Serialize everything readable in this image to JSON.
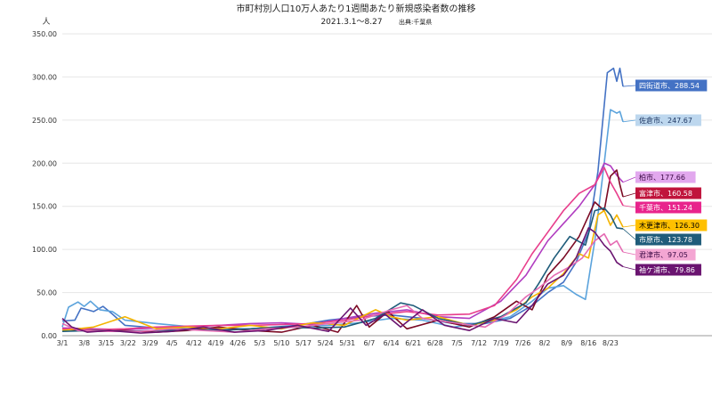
{
  "chart_data": {
    "type": "line",
    "title": "市町村別人口10万人あたり1週間あたり新規感染者数の推移",
    "subtitle": "2021.3.1～8.27",
    "source": "出典:千葉県",
    "ylabel": "人",
    "ylim": [
      0,
      350
    ],
    "yticks": [
      "0.00",
      "50.00",
      "100.00",
      "150.00",
      "200.00",
      "250.00",
      "300.00",
      "350.00"
    ],
    "xticks": [
      {
        "label": "3/1",
        "day": 0
      },
      {
        "label": "3/8",
        "day": 7
      },
      {
        "label": "3/15",
        "day": 14
      },
      {
        "label": "3/22",
        "day": 21
      },
      {
        "label": "3/29",
        "day": 28
      },
      {
        "label": "4/5",
        "day": 35
      },
      {
        "label": "4/12",
        "day": 42
      },
      {
        "label": "4/19",
        "day": 49
      },
      {
        "label": "4/26",
        "day": 56
      },
      {
        "label": "5/3",
        "day": 63
      },
      {
        "label": "5/10",
        "day": 70
      },
      {
        "label": "5/17",
        "day": 77
      },
      {
        "label": "5/24",
        "day": 84
      },
      {
        "label": "5/31",
        "day": 91
      },
      {
        "label": "6/7",
        "day": 98
      },
      {
        "label": "6/14",
        "day": 105
      },
      {
        "label": "6/21",
        "day": 112
      },
      {
        "label": "6/28",
        "day": 119
      },
      {
        "label": "7/5",
        "day": 126
      },
      {
        "label": "7/12",
        "day": 133
      },
      {
        "label": "7/19",
        "day": 140
      },
      {
        "label": "7/26",
        "day": 147
      },
      {
        "label": "8/2",
        "day": 154
      },
      {
        "label": "8/9",
        "day": 161
      },
      {
        "label": "8/16",
        "day": 168
      },
      {
        "label": "8/23",
        "day": 175
      }
    ],
    "xlim": [
      0,
      179
    ],
    "grid": "horizontal",
    "series": [
      {
        "name": "四街道市",
        "label": "四街道市、288.54",
        "color": "#4472c4",
        "label_bg": "#4472c4",
        "label_color": "#ffffff",
        "points": [
          [
            0,
            17
          ],
          [
            4,
            18
          ],
          [
            6,
            32
          ],
          [
            8,
            30
          ],
          [
            10,
            28
          ],
          [
            13,
            34
          ],
          [
            16,
            25
          ],
          [
            20,
            12
          ],
          [
            30,
            9
          ],
          [
            45,
            7
          ],
          [
            60,
            8
          ],
          [
            75,
            12
          ],
          [
            85,
            18
          ],
          [
            95,
            22
          ],
          [
            105,
            24
          ],
          [
            115,
            20
          ],
          [
            125,
            14
          ],
          [
            135,
            14
          ],
          [
            143,
            20
          ],
          [
            150,
            35
          ],
          [
            155,
            50
          ],
          [
            160,
            62
          ],
          [
            164,
            85
          ],
          [
            168,
            120
          ],
          [
            171,
            190
          ],
          [
            174,
            305
          ],
          [
            176,
            310
          ],
          [
            177,
            295
          ],
          [
            178,
            310
          ],
          [
            179,
            289
          ]
        ]
      },
      {
        "name": "佐倉市",
        "label": "佐倉市、247.67",
        "color": "#5ba3dc",
        "label_bg": "#bdd7ee",
        "label_color": "#1f3864",
        "points": [
          [
            0,
            10
          ],
          [
            2,
            33
          ],
          [
            5,
            39
          ],
          [
            7,
            34
          ],
          [
            9,
            40
          ],
          [
            12,
            30
          ],
          [
            16,
            28
          ],
          [
            20,
            18
          ],
          [
            30,
            14
          ],
          [
            45,
            9
          ],
          [
            60,
            8
          ],
          [
            75,
            10
          ],
          [
            85,
            12
          ],
          [
            95,
            15
          ],
          [
            105,
            20
          ],
          [
            115,
            18
          ],
          [
            125,
            10
          ],
          [
            135,
            15
          ],
          [
            143,
            22
          ],
          [
            150,
            40
          ],
          [
            155,
            55
          ],
          [
            160,
            58
          ],
          [
            164,
            48
          ],
          [
            167,
            42
          ],
          [
            170,
            110
          ],
          [
            173,
            200
          ],
          [
            175,
            262
          ],
          [
            177,
            258
          ],
          [
            178,
            260
          ],
          [
            179,
            248
          ]
        ]
      },
      {
        "name": "柏市",
        "label": "柏市、177.66",
        "color": "#b03cc0",
        "label_bg": "#e2a8ee",
        "label_color": "#3b0a45",
        "points": [
          [
            0,
            9
          ],
          [
            10,
            8
          ],
          [
            20,
            7
          ],
          [
            30,
            9
          ],
          [
            40,
            10
          ],
          [
            50,
            12
          ],
          [
            60,
            14
          ],
          [
            70,
            15
          ],
          [
            80,
            13
          ],
          [
            90,
            20
          ],
          [
            100,
            26
          ],
          [
            110,
            30
          ],
          [
            120,
            22
          ],
          [
            130,
            20
          ],
          [
            140,
            40
          ],
          [
            148,
            70
          ],
          [
            155,
            110
          ],
          [
            160,
            130
          ],
          [
            165,
            150
          ],
          [
            170,
            175
          ],
          [
            173,
            200
          ],
          [
            175,
            197
          ],
          [
            177,
            186
          ],
          [
            179,
            178
          ]
        ]
      },
      {
        "name": "富津市",
        "label": "富津市、160.58",
        "color": "#7b0a24",
        "label_bg": "#c0143c",
        "label_color": "#ffffff",
        "points": [
          [
            0,
            8
          ],
          [
            10,
            5
          ],
          [
            20,
            6
          ],
          [
            30,
            4
          ],
          [
            40,
            6
          ],
          [
            50,
            10
          ],
          [
            60,
            6
          ],
          [
            70,
            4
          ],
          [
            80,
            12
          ],
          [
            88,
            4
          ],
          [
            94,
            35
          ],
          [
            98,
            10
          ],
          [
            104,
            28
          ],
          [
            110,
            8
          ],
          [
            120,
            18
          ],
          [
            130,
            10
          ],
          [
            138,
            22
          ],
          [
            145,
            40
          ],
          [
            150,
            30
          ],
          [
            155,
            70
          ],
          [
            160,
            90
          ],
          [
            165,
            115
          ],
          [
            170,
            155
          ],
          [
            173,
            145
          ],
          [
            175,
            185
          ],
          [
            177,
            192
          ],
          [
            178,
            175
          ],
          [
            179,
            161
          ]
        ]
      },
      {
        "name": "千葉市",
        "label": "千葉市、151.24",
        "color": "#e83e8c",
        "label_bg": "#e8248c",
        "label_color": "#ffffff",
        "points": [
          [
            0,
            8
          ],
          [
            10,
            7
          ],
          [
            20,
            8
          ],
          [
            30,
            10
          ],
          [
            40,
            11
          ],
          [
            50,
            12
          ],
          [
            60,
            12
          ],
          [
            70,
            13
          ],
          [
            80,
            14
          ],
          [
            90,
            18
          ],
          [
            100,
            24
          ],
          [
            110,
            28
          ],
          [
            120,
            24
          ],
          [
            130,
            25
          ],
          [
            138,
            35
          ],
          [
            145,
            65
          ],
          [
            150,
            95
          ],
          [
            155,
            120
          ],
          [
            160,
            145
          ],
          [
            165,
            165
          ],
          [
            170,
            175
          ],
          [
            173,
            195
          ],
          [
            175,
            178
          ],
          [
            177,
            165
          ],
          [
            179,
            151
          ]
        ]
      },
      {
        "name": "木更津市",
        "label": "木更津市、126.30",
        "color": "#f4b400",
        "label_bg": "#ffc000",
        "label_color": "#000000",
        "points": [
          [
            0,
            6
          ],
          [
            10,
            10
          ],
          [
            20,
            22
          ],
          [
            25,
            15
          ],
          [
            30,
            8
          ],
          [
            40,
            10
          ],
          [
            50,
            8
          ],
          [
            60,
            12
          ],
          [
            70,
            8
          ],
          [
            80,
            15
          ],
          [
            90,
            12
          ],
          [
            100,
            30
          ],
          [
            105,
            22
          ],
          [
            110,
            18
          ],
          [
            120,
            22
          ],
          [
            130,
            12
          ],
          [
            138,
            18
          ],
          [
            145,
            30
          ],
          [
            150,
            45
          ],
          [
            155,
            55
          ],
          [
            160,
            72
          ],
          [
            165,
            95
          ],
          [
            168,
            90
          ],
          [
            171,
            140
          ],
          [
            173,
            145
          ],
          [
            175,
            128
          ],
          [
            177,
            140
          ],
          [
            179,
            126
          ]
        ]
      },
      {
        "name": "市原市",
        "label": "市原市、123.78",
        "color": "#1f5c7a",
        "label_bg": "#1f5c7a",
        "label_color": "#ffffff",
        "points": [
          [
            0,
            5
          ],
          [
            10,
            6
          ],
          [
            20,
            5
          ],
          [
            30,
            6
          ],
          [
            40,
            7
          ],
          [
            50,
            6
          ],
          [
            60,
            8
          ],
          [
            70,
            10
          ],
          [
            80,
            9
          ],
          [
            90,
            10
          ],
          [
            100,
            20
          ],
          [
            108,
            38
          ],
          [
            112,
            35
          ],
          [
            120,
            20
          ],
          [
            130,
            12
          ],
          [
            140,
            22
          ],
          [
            148,
            38
          ],
          [
            152,
            60
          ],
          [
            157,
            90
          ],
          [
            162,
            115
          ],
          [
            167,
            105
          ],
          [
            170,
            145
          ],
          [
            173,
            148
          ],
          [
            175,
            140
          ],
          [
            177,
            125
          ],
          [
            179,
            124
          ]
        ]
      },
      {
        "name": "君津市",
        "label": "君津市、97.05",
        "color": "#e56bb3",
        "label_bg": "#f4a6d3",
        "label_color": "#3b0a45",
        "points": [
          [
            0,
            14
          ],
          [
            5,
            6
          ],
          [
            15,
            5
          ],
          [
            25,
            5
          ],
          [
            35,
            8
          ],
          [
            45,
            6
          ],
          [
            55,
            4
          ],
          [
            65,
            8
          ],
          [
            75,
            10
          ],
          [
            85,
            14
          ],
          [
            95,
            18
          ],
          [
            105,
            30
          ],
          [
            110,
            35
          ],
          [
            115,
            20
          ],
          [
            125,
            15
          ],
          [
            135,
            10
          ],
          [
            142,
            25
          ],
          [
            148,
            45
          ],
          [
            152,
            55
          ],
          [
            157,
            70
          ],
          [
            162,
            80
          ],
          [
            166,
            90
          ],
          [
            170,
            110
          ],
          [
            173,
            118
          ],
          [
            175,
            105
          ],
          [
            177,
            110
          ],
          [
            179,
            97
          ]
        ]
      },
      {
        "name": "袖ケ浦市",
        "label": "袖ケ浦市、79.86",
        "color": "#6a1470",
        "label_bg": "#6a1470",
        "label_color": "#ffffff",
        "points": [
          [
            0,
            20
          ],
          [
            3,
            10
          ],
          [
            8,
            4
          ],
          [
            15,
            6
          ],
          [
            25,
            3
          ],
          [
            35,
            5
          ],
          [
            45,
            10
          ],
          [
            55,
            4
          ],
          [
            65,
            6
          ],
          [
            75,
            12
          ],
          [
            85,
            5
          ],
          [
            92,
            32
          ],
          [
            97,
            12
          ],
          [
            103,
            25
          ],
          [
            108,
            10
          ],
          [
            115,
            30
          ],
          [
            122,
            12
          ],
          [
            130,
            6
          ],
          [
            138,
            20
          ],
          [
            145,
            15
          ],
          [
            150,
            35
          ],
          [
            155,
            60
          ],
          [
            160,
            70
          ],
          [
            164,
            90
          ],
          [
            168,
            125
          ],
          [
            170,
            120
          ],
          [
            173,
            105
          ],
          [
            175,
            98
          ],
          [
            177,
            85
          ],
          [
            179,
            80
          ]
        ]
      }
    ]
  }
}
